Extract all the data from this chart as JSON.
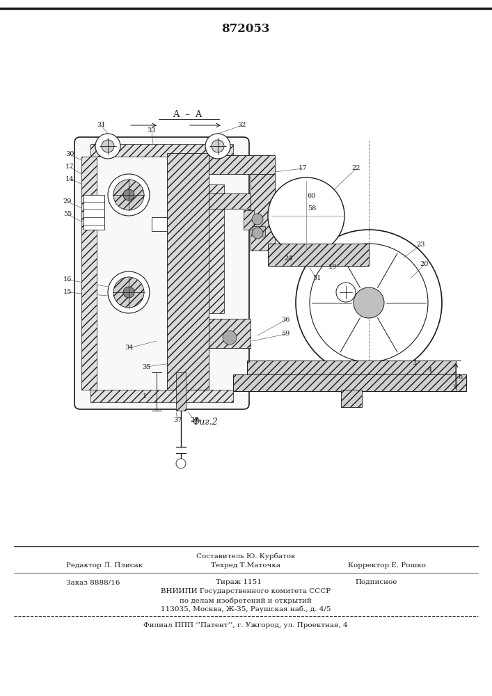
{
  "patent_number": "872053",
  "fig_label": "Фиг.2",
  "section_label": "А  –  А",
  "bg_color": "#ffffff",
  "line_color": "#1a1a1a",
  "footer_line1_center": "Составитель Ю. Курбатов",
  "footer_line1_left": "Редактор Л. Плисак",
  "footer_line1_center2": "Техред Т.Маточка",
  "footer_line1_right": "Корректор Е. Рошко",
  "footer_line2_left": "Заказ 8888/16",
  "footer_line2_c1": "Тираж 1151",
  "footer_line2_c2": "Подписное",
  "footer_vniipи": "ВНИИПИ Государственного комитета СССР",
  "footer_po": "по делам изобретений и открытий",
  "footer_addr": "113035, Москва, Ж-35, Раушская наб., д. 4/5",
  "footer_filial": "Филиал ППП ’’Патент’’, г. Ужгород, ул. Проектная, 4"
}
